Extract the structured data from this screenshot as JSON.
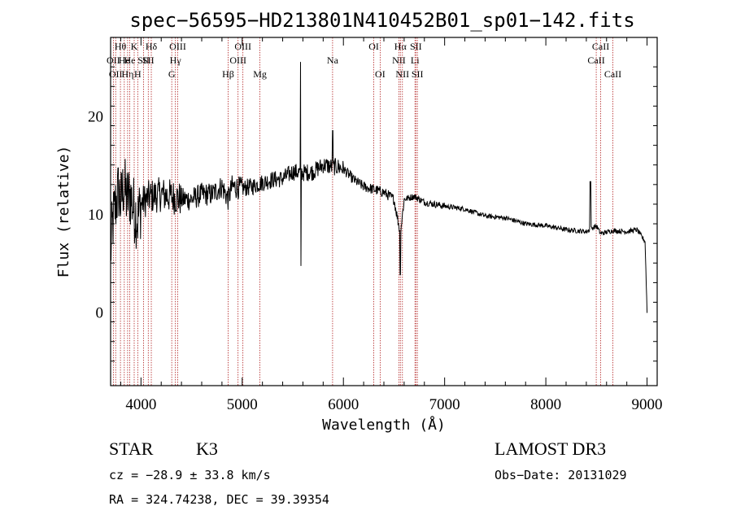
{
  "chart_data": {
    "type": "line",
    "title": "spec−56595−HD213801N410452B01_sp01−142.fits",
    "xlabel": "Wavelength (Å)",
    "ylabel": "Flux (relative)",
    "xlim": [
      3700,
      9100
    ],
    "ylim": [
      -7.5,
      28
    ],
    "xticks": [
      4000,
      5000,
      6000,
      7000,
      8000,
      9000
    ],
    "yticks": [
      0,
      10,
      20
    ],
    "spectrum_anchors": {
      "x": [
        3700,
        3720,
        3750,
        3780,
        3800,
        3830,
        3860,
        3890,
        3930,
        3968,
        4000,
        4050,
        4100,
        4200,
        4300,
        4400,
        4500,
        4600,
        4700,
        4800,
        4861,
        4900,
        5000,
        5100,
        5200,
        5300,
        5400,
        5500,
        5600,
        5700,
        5800,
        5893,
        5950,
        6000,
        6100,
        6200,
        6300,
        6400,
        6500,
        6563,
        6600,
        6700,
        6800,
        7000,
        7200,
        7400,
        7600,
        7800,
        8000,
        8200,
        8400,
        8498,
        8542,
        8662,
        8800,
        8900,
        8980,
        9000
      ],
      "y": [
        6.0,
        9.0,
        11.0,
        12.5,
        11.0,
        13.0,
        11.5,
        12.0,
        10.5,
        9.5,
        11.0,
        11.5,
        11.8,
        12.0,
        11.8,
        11.5,
        11.5,
        12.0,
        12.0,
        12.8,
        11.5,
        12.8,
        12.6,
        12.8,
        13.2,
        13.5,
        13.6,
        14.3,
        14.2,
        14.3,
        15.0,
        14.8,
        14.8,
        14.6,
        13.5,
        12.8,
        12.5,
        12.2,
        11.5,
        8.0,
        11.5,
        11.8,
        11.2,
        10.8,
        10.5,
        9.8,
        9.6,
        9.0,
        8.8,
        8.4,
        8.2,
        8.8,
        8.0,
        8.3,
        8.2,
        8.4,
        7.2,
        0.0
      ]
    },
    "spikes": [
      {
        "x": 5577,
        "y": 25.5
      },
      {
        "x": 5577,
        "y": 4.7
      },
      {
        "x": 5893,
        "y": 18.5
      },
      {
        "x": 8440,
        "y": 13.3
      }
    ],
    "spectral_lines": [
      {
        "x": 3727,
        "label": "OII",
        "row": 2
      },
      {
        "x": 3750,
        "label": "OII",
        "row": 3
      },
      {
        "x": 3797,
        "label": "Hθ",
        "row": 1
      },
      {
        "x": 3835,
        "label": "He",
        "row": 2
      },
      {
        "x": 3868,
        "label": "Hη",
        "row": 3
      },
      {
        "x": 3889,
        "label": "He",
        "row": 2
      },
      {
        "x": 3933,
        "label": "K",
        "row": 1
      },
      {
        "x": 3968,
        "label": "H",
        "row": 3
      },
      {
        "x": 4026,
        "label": "SII",
        "row": 2
      },
      {
        "x": 4072,
        "label": "SII",
        "row": 2
      },
      {
        "x": 4102,
        "label": "Hδ",
        "row": 1
      },
      {
        "x": 4304,
        "label": "G",
        "row": 3
      },
      {
        "x": 4340,
        "label": "Hγ",
        "row": 2
      },
      {
        "x": 4363,
        "label": "OIII",
        "row": 1
      },
      {
        "x": 4861,
        "label": "Hβ",
        "row": 3
      },
      {
        "x": 4959,
        "label": "OIII",
        "row": 2
      },
      {
        "x": 5007,
        "label": "OIII",
        "row": 1
      },
      {
        "x": 5175,
        "label": "Mg",
        "row": 3
      },
      {
        "x": 5893,
        "label": "Na",
        "row": 2
      },
      {
        "x": 6300,
        "label": "OI",
        "row": 1
      },
      {
        "x": 6363,
        "label": "OI",
        "row": 3
      },
      {
        "x": 6548,
        "label": "NII",
        "row": 2
      },
      {
        "x": 6563,
        "label": "Hα",
        "row": 1
      },
      {
        "x": 6583,
        "label": "NII",
        "row": 3
      },
      {
        "x": 6707,
        "label": "Li",
        "row": 2
      },
      {
        "x": 6716,
        "label": "SII",
        "row": 1
      },
      {
        "x": 6731,
        "label": "SII",
        "row": 3
      },
      {
        "x": 8498,
        "label": "CaII",
        "row": 2
      },
      {
        "x": 8542,
        "label": "CaII",
        "row": 1
      },
      {
        "x": 8662,
        "label": "CaII",
        "row": 3
      }
    ]
  },
  "info": {
    "object_class": "STAR",
    "subclass": "K3",
    "survey": "LAMOST DR3",
    "redshift": "cz = −28.9 ± 33.8 km/s",
    "obs_date": "Obs−Date: 20131029",
    "coords": "RA = 324.74238, DEC =  39.39354"
  },
  "colors": {
    "line_marker": "#b22222",
    "spectrum": "#000000",
    "frame": "#000000"
  }
}
